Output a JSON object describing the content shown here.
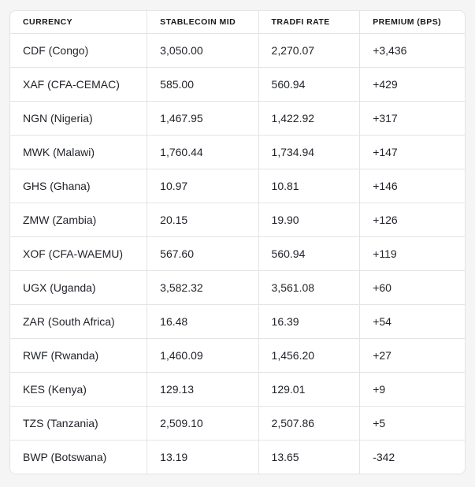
{
  "chart_data": {
    "type": "table",
    "columns": [
      "CURRENCY",
      "STABLECOIN MID",
      "TRADFI RATE",
      "PREMIUM (BPS)"
    ],
    "rows": [
      [
        "CDF (Congo)",
        "3,050.00",
        "2,270.07",
        "+3,436"
      ],
      [
        "XAF (CFA-CEMAC)",
        "585.00",
        "560.94",
        "+429"
      ],
      [
        "NGN (Nigeria)",
        "1,467.95",
        "1,422.92",
        "+317"
      ],
      [
        "MWK (Malawi)",
        "1,760.44",
        "1,734.94",
        "+147"
      ],
      [
        "GHS (Ghana)",
        "10.97",
        "10.81",
        "+146"
      ],
      [
        "ZMW (Zambia)",
        "20.15",
        "19.90",
        "+126"
      ],
      [
        "XOF (CFA-WAEMU)",
        "567.60",
        "560.94",
        "+119"
      ],
      [
        "UGX (Uganda)",
        "3,582.32",
        "3,561.08",
        "+60"
      ],
      [
        "ZAR (South Africa)",
        "16.48",
        "16.39",
        "+54"
      ],
      [
        "RWF (Rwanda)",
        "1,460.09",
        "1,456.20",
        "+27"
      ],
      [
        "KES (Kenya)",
        "129.13",
        "129.01",
        "+9"
      ],
      [
        "TZS (Tanzania)",
        "2,509.10",
        "2,507.86",
        "+5"
      ],
      [
        "BWP (Botswana)",
        "13.19",
        "13.65",
        "-342"
      ]
    ],
    "title": "",
    "colors": {
      "table_border": "#e4e4e7",
      "table_background": "#ffffff",
      "page_background": "#f5f5f6",
      "header_text": "#18181b",
      "cell_text": "#1f2228"
    }
  }
}
